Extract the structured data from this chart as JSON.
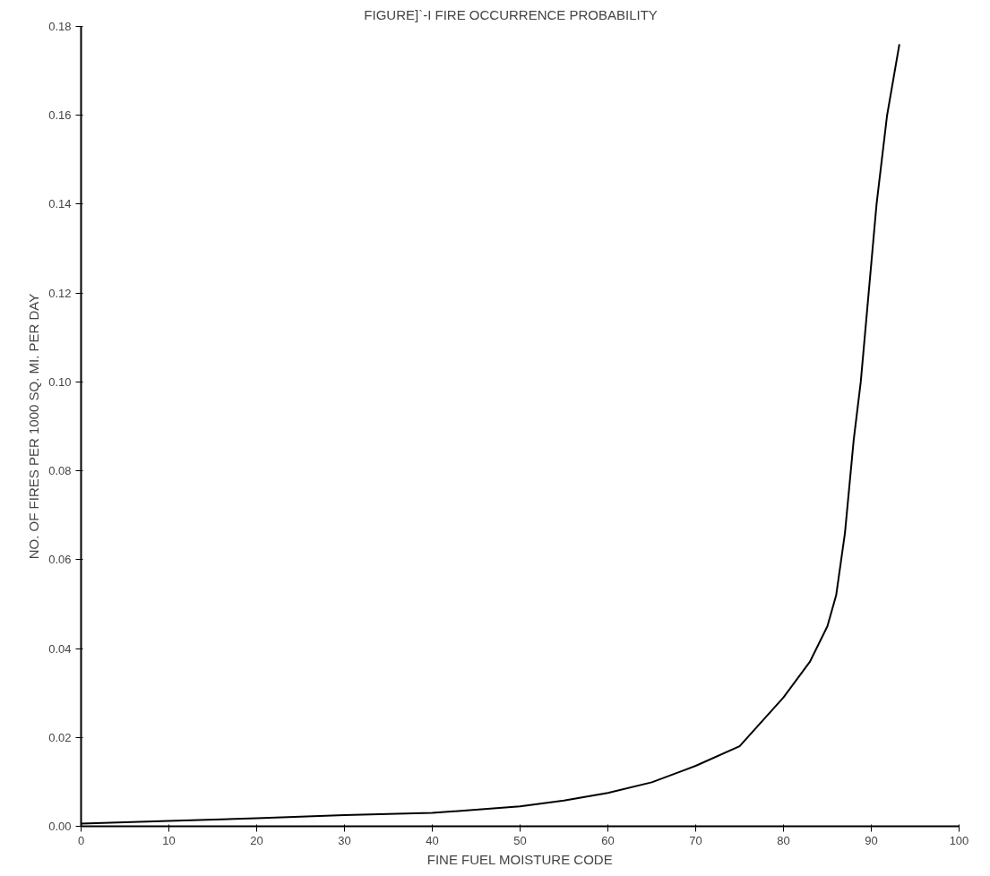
{
  "chart_data": {
    "type": "line",
    "title": "FIGURE]`-I      FIRE OCCURRENCE PROBABILITY",
    "xlabel": "FINE FUEL MOISTURE CODE",
    "ylabel": "NO. OF FIRES PER 1000 SQ. MI. PER DAY",
    "x": [
      0,
      10,
      20,
      30,
      40,
      50,
      55,
      60,
      65,
      70,
      75,
      80,
      83,
      85,
      86,
      87,
      88,
      88.8,
      89.7,
      90.6,
      91.8,
      93.2
    ],
    "series": [
      {
        "color": "#000000",
        "values": [
          0.0006,
          0.0012,
          0.0018,
          0.0025,
          0.003,
          0.0045,
          0.0058,
          0.0075,
          0.0099,
          0.0136,
          0.018,
          0.029,
          0.037,
          0.045,
          0.052,
          0.066,
          0.087,
          0.1,
          0.12,
          0.14,
          0.16,
          0.176
        ]
      }
    ],
    "xlim": [
      0,
      100
    ],
    "ylim": [
      0,
      0.18
    ],
    "xticks": [
      0,
      10,
      20,
      30,
      40,
      50,
      60,
      70,
      80,
      90,
      100
    ],
    "yticks": [
      {
        "value": 0,
        "label": "0.00"
      },
      {
        "value": 0.02,
        "label": "0.02"
      },
      {
        "value": 0.04,
        "label": "0.04"
      },
      {
        "value": 0.06,
        "label": "0.06"
      },
      {
        "value": 0.08,
        "label": "0.08"
      },
      {
        "value": 0.1,
        "label": "0.10"
      },
      {
        "value": 0.12,
        "label": "0.12"
      },
      {
        "value": 0.14,
        "label": "0.14"
      },
      {
        "value": 0.16,
        "label": "0.16"
      },
      {
        "value": 0.18,
        "label": "0.18"
      }
    ],
    "grid": false,
    "marker": "none",
    "line_style": "solid"
  }
}
